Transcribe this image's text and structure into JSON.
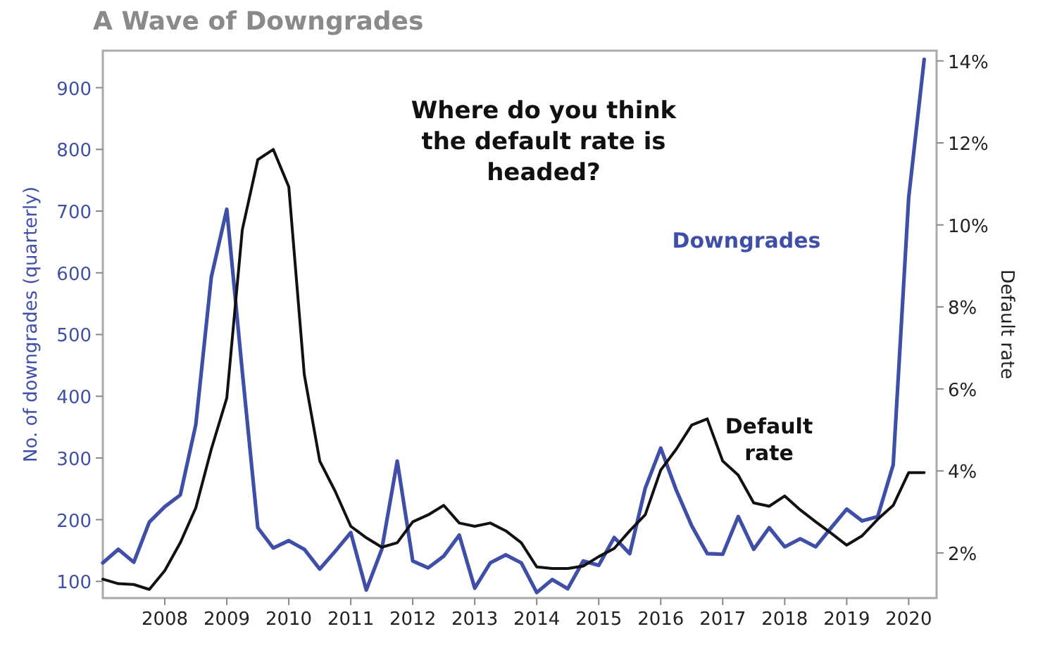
{
  "chart_data": {
    "type": "line",
    "title": "A Wave of Downgrades",
    "ylabel": "No. of downgrades (quarterly)",
    "y2label": "Default rate",
    "annotations": [
      "Where do you think the default rate is headed?"
    ],
    "x": [
      2007,
      2007.25,
      2007.5,
      2007.75,
      2008,
      2008.25,
      2008.5,
      2008.75,
      2009,
      2009.25,
      2009.5,
      2009.75,
      2010,
      2010.25,
      2010.5,
      2010.75,
      2011,
      2011.25,
      2011.5,
      2011.75,
      2012,
      2012.25,
      2012.5,
      2012.75,
      2013,
      2013.25,
      2013.5,
      2013.75,
      2014,
      2014.25,
      2014.5,
      2014.75,
      2015,
      2015.25,
      2015.5,
      2015.75,
      2016,
      2016.25,
      2016.5,
      2016.75,
      2017,
      2017.25,
      2017.5,
      2017.75,
      2018,
      2018.25,
      2018.5,
      2018.75,
      2019,
      2019.25,
      2019.5,
      2019.75,
      2020,
      2020.25
    ],
    "series": [
      {
        "name": "Downgrades",
        "color": "#3f4fa8",
        "values": [
          130,
          152,
          131,
          196,
          221,
          240,
          354,
          593,
          703,
          440,
          187,
          154,
          166,
          152,
          120,
          149,
          179,
          86,
          152,
          295,
          133,
          122,
          141,
          175,
          89,
          130,
          143,
          130,
          82,
          103,
          88,
          133,
          126,
          171,
          145,
          251,
          316,
          248,
          190,
          145,
          144,
          205,
          152,
          187,
          156,
          169,
          156,
          187,
          217,
          198,
          205,
          289,
          722,
          946
        ]
      },
      {
        "name": "Default rate",
        "color": "#111111",
        "axis": "y2",
        "values": [
          1.36,
          1.25,
          1.23,
          1.11,
          1.57,
          2.25,
          3.1,
          4.53,
          5.78,
          9.88,
          11.59,
          11.84,
          10.93,
          6.35,
          4.24,
          3.5,
          2.65,
          2.37,
          2.14,
          2.25,
          2.76,
          2.93,
          3.16,
          2.73,
          2.65,
          2.73,
          2.54,
          2.25,
          1.66,
          1.62,
          1.62,
          1.68,
          1.91,
          2.11,
          2.54,
          2.93,
          4.02,
          4.53,
          5.12,
          5.27,
          4.24,
          3.9,
          3.22,
          3.14,
          3.39,
          3.05,
          2.76,
          2.48,
          2.19,
          2.42,
          2.82,
          3.16,
          3.96,
          3.96
        ]
      }
    ],
    "xlim": [
      2007,
      2020.45
    ],
    "xticks": [
      2008,
      2009,
      2010,
      2011,
      2012,
      2013,
      2014,
      2015,
      2016,
      2017,
      2018,
      2019,
      2020
    ],
    "ylim": [
      73,
      960
    ],
    "yticks": [
      100,
      200,
      300,
      400,
      500,
      600,
      700,
      800,
      900
    ],
    "y2lim": [
      0.9,
      14.25
    ],
    "y2ticks": [
      {
        "value": 2,
        "label": "2%"
      },
      {
        "value": 4,
        "label": "4%"
      },
      {
        "value": 6,
        "label": "6%"
      },
      {
        "value": 8,
        "label": "8%"
      },
      {
        "value": 10,
        "label": "10%"
      },
      {
        "value": 12,
        "label": "12%"
      },
      {
        "value": 14,
        "label": "14%"
      }
    ],
    "grid": false,
    "legend": false,
    "line_style": "solid",
    "marker": "none"
  }
}
